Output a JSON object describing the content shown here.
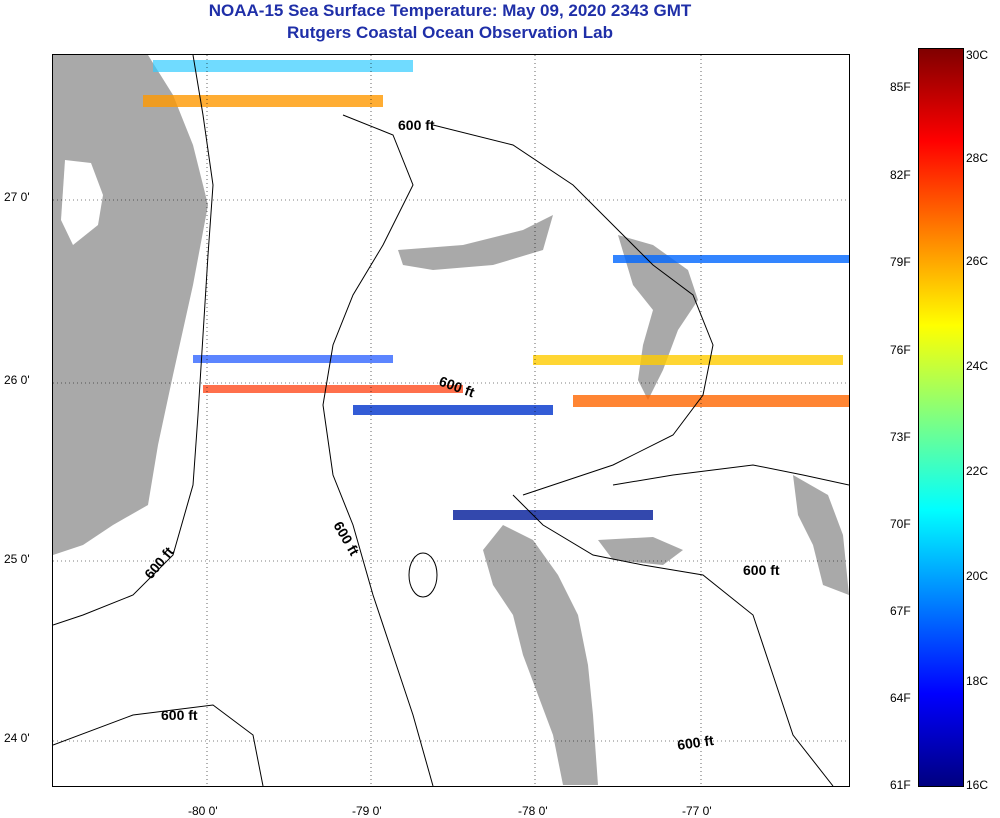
{
  "header": {
    "title_line1": "NOAA-15 Sea Surface Temperature:  May 09, 2020 2343 GMT",
    "title_line2": "Rutgers Coastal Ocean Observation Lab"
  },
  "map": {
    "latitude_labels": [
      "27 0'",
      "26 0'",
      "25 0'",
      "24 0'"
    ],
    "longitude_labels": [
      "-80 0'",
      "-79 0'",
      "-78 0'",
      "-77 0'"
    ],
    "isobath_label": "600 ft",
    "land_color": "#a9a9a9",
    "grid_style": "dotted"
  },
  "colorbar": {
    "fahrenheit_labels": [
      "85F",
      "82F",
      "79F",
      "76F",
      "73F",
      "70F",
      "67F",
      "64F",
      "61F"
    ],
    "celsius_labels": [
      "30C",
      "28C",
      "26C",
      "24C",
      "22C",
      "20C",
      "18C",
      "16C"
    ],
    "colors": [
      "#800000",
      "#ff0000",
      "#ff8000",
      "#ffff00",
      "#80ff80",
      "#00ffff",
      "#0080ff",
      "#0000ff",
      "#000080"
    ]
  }
}
